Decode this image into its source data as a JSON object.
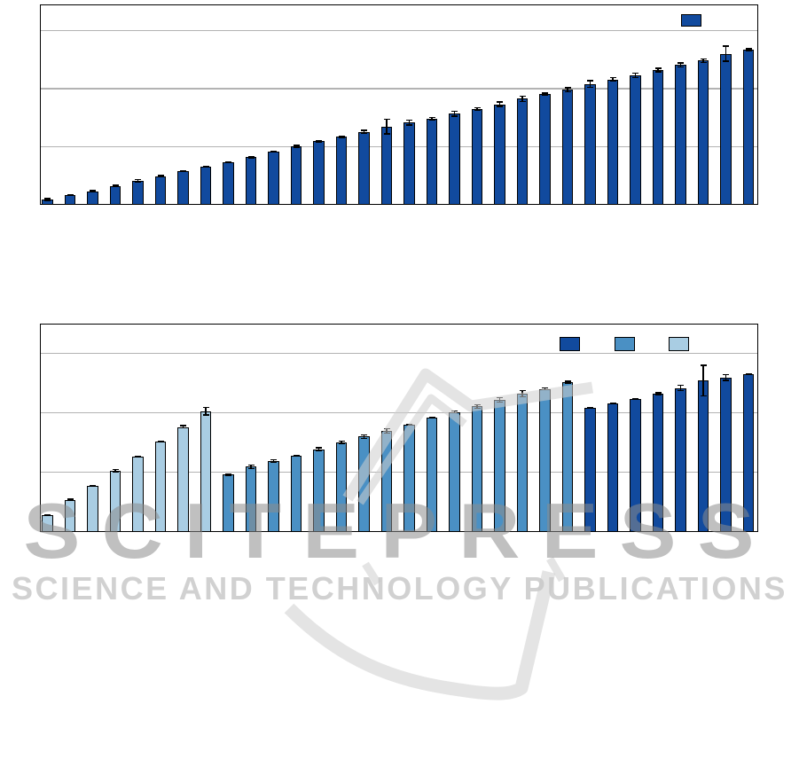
{
  "watermark": {
    "wordmark": "SCITEPRESS",
    "tagline": "SCIENCE AND TECHNOLOGY PUBLICATIONS",
    "wordmark_color": "#8c8c8c",
    "tagline_color": "#c5c5c5",
    "logo_outline_color": "#cdcdcd"
  },
  "palette": {
    "dark_blue": "#114a9e",
    "medium_blue": "#4a90c4",
    "light_blue": "#a9cde3",
    "bar_outline": "#000000",
    "gridline_gray": "#b3b3b3",
    "plot_border": "#000000",
    "background": "#ffffff"
  },
  "chart_data": [
    {
      "id": "top-chart",
      "type": "bar",
      "title": "",
      "xlabel": "",
      "ylabel": "",
      "n_bars": 32,
      "x_tick_labels_visible": false,
      "y_tick_labels_visible": false,
      "ylim": [
        0,
        0.685
      ],
      "gridlines": [
        0.2,
        0.4,
        0.6
      ],
      "grid": "horizontal",
      "error_bars": true,
      "legend": {
        "position": "top-right-inside",
        "entries": [
          {
            "label": "",
            "color": "#114a9e"
          }
        ]
      },
      "series": [
        {
          "name": "dark-blue-series",
          "color": "#114a9e",
          "values": [
            0.015,
            0.03,
            0.044,
            0.062,
            0.08,
            0.096,
            0.113,
            0.129,
            0.145,
            0.161,
            0.182,
            0.199,
            0.216,
            0.231,
            0.249,
            0.267,
            0.28,
            0.294,
            0.311,
            0.328,
            0.344,
            0.363,
            0.378,
            0.394,
            0.414,
            0.429,
            0.444,
            0.462,
            0.479,
            0.494,
            0.518,
            0.531
          ],
          "errors": [
            0.005,
            0.003,
            0.004,
            0.004,
            0.007,
            0.004,
            0.004,
            0.004,
            0.003,
            0.004,
            0.003,
            0.005,
            0.004,
            0.005,
            0.007,
            0.027,
            0.01,
            0.006,
            0.01,
            0.006,
            0.01,
            0.011,
            0.006,
            0.009,
            0.013,
            0.008,
            0.01,
            0.008,
            0.009,
            0.009,
            0.028,
            0.006
          ]
        }
      ]
    },
    {
      "id": "bottom-chart",
      "type": "bar",
      "title": "",
      "xlabel": "",
      "ylabel": "",
      "n_bars": 32,
      "x_tick_labels_visible": false,
      "y_tick_labels_visible": false,
      "ylim": [
        0,
        0.694
      ],
      "gridlines": [
        0.2,
        0.4,
        0.6
      ],
      "grid": "horizontal",
      "error_bars": true,
      "legend": {
        "position": "top-right-inside",
        "entries": [
          {
            "label": "",
            "color": "#114a9e"
          },
          {
            "label": "",
            "color": "#4a90c4"
          },
          {
            "label": "",
            "color": "#a9cde3"
          }
        ]
      },
      "series": [
        {
          "name": "light-blue-series",
          "color": "#a9cde3",
          "values": [
            0.054,
            0.105,
            0.152,
            0.203,
            0.251,
            0.301,
            0.35,
            0.403
          ],
          "errors": [
            0.002,
            0.004,
            0.002,
            0.006,
            0.003,
            0.004,
            0.006,
            0.015
          ]
        },
        {
          "name": "medium-blue-series",
          "color": "#4a90c4",
          "values": [
            0.19,
            0.216,
            0.235,
            0.253,
            0.275,
            0.298,
            0.318,
            0.337,
            0.357,
            0.382,
            0.4,
            0.419,
            0.441,
            0.461,
            0.478,
            0.499
          ],
          "errors": [
            0.004,
            0.008,
            0.006,
            0.003,
            0.007,
            0.006,
            0.008,
            0.009,
            0.004,
            0.003,
            0.005,
            0.008,
            0.01,
            0.012,
            0.004,
            0.006
          ]
        },
        {
          "name": "dark-blue-series",
          "color": "#114a9e",
          "values": [
            0.414,
            0.429,
            0.444,
            0.461,
            0.481,
            0.506,
            0.516,
            0.526
          ],
          "errors": [
            0.003,
            0.004,
            0.004,
            0.006,
            0.01,
            0.053,
            0.012,
            0.003
          ]
        }
      ]
    }
  ]
}
